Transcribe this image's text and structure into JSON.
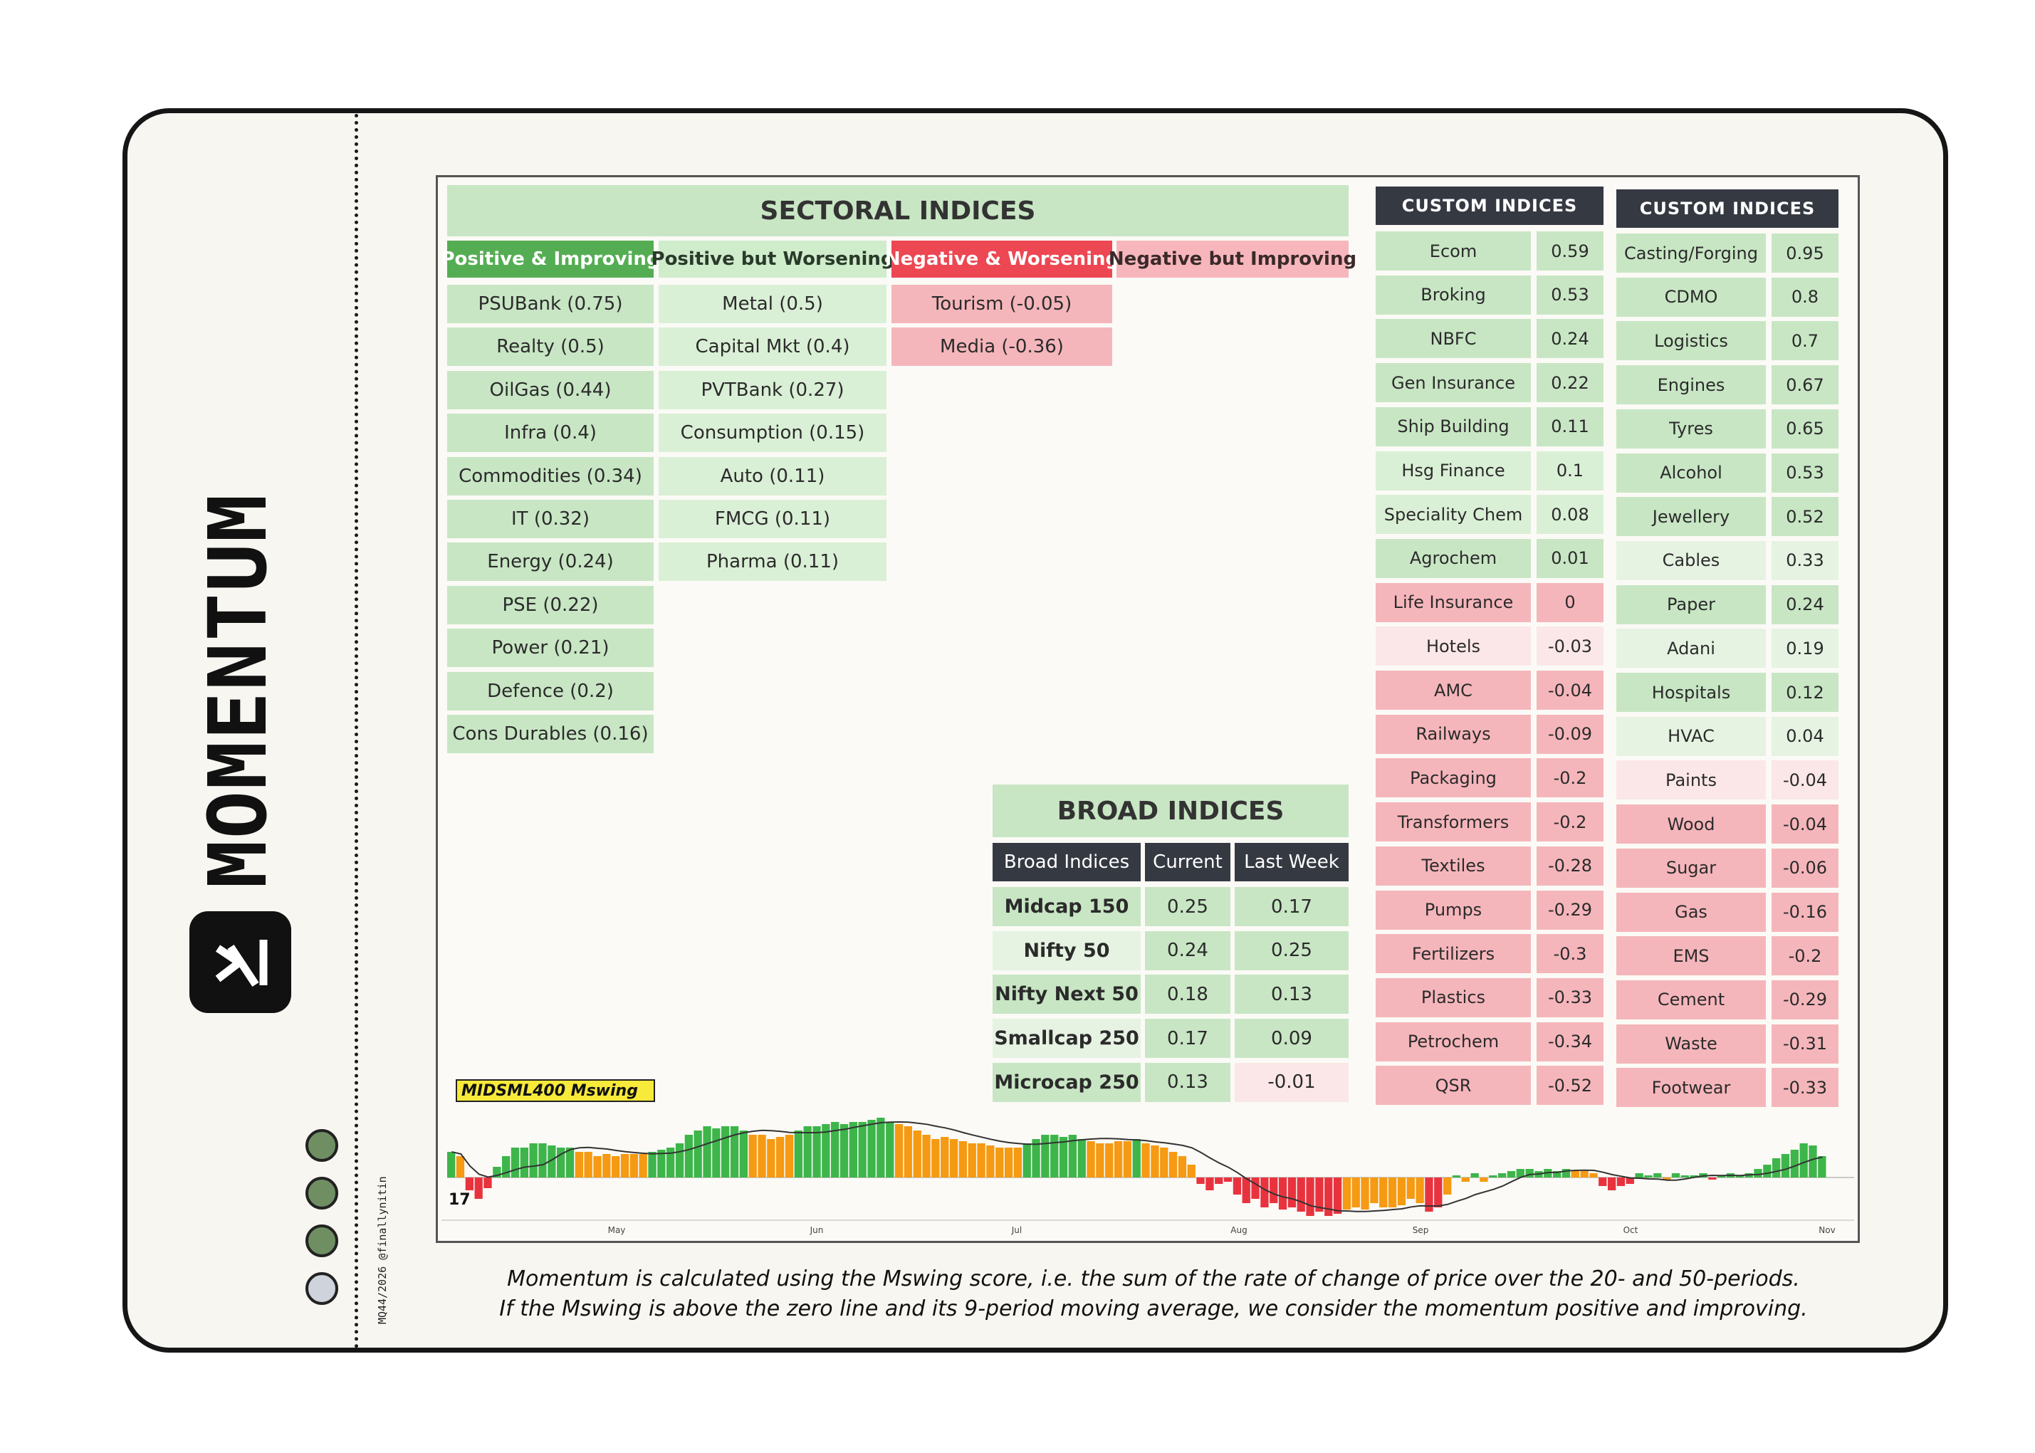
{
  "brand": {
    "name": "MOMENTUM",
    "handle": "MQ44/2026 @finallynitin"
  },
  "sectoral": {
    "title": "SECTORAL INDICES",
    "columns": [
      {
        "label": "Positive & Improving",
        "items": [
          "PSUBank (0.75)",
          "Realty (0.5)",
          "OilGas (0.44)",
          "Infra (0.4)",
          "Commodities (0.34)",
          "IT (0.32)",
          "Energy (0.24)",
          "PSE (0.22)",
          "Power (0.21)",
          "Defence (0.2)",
          "Cons Durables (0.16)"
        ]
      },
      {
        "label": "Positive but Worsening",
        "items": [
          "Metal (0.5)",
          "Capital Mkt (0.4)",
          "PVTBank (0.27)",
          "Consumption (0.15)",
          "Auto (0.11)",
          "FMCG (0.11)",
          "Pharma (0.11)"
        ]
      },
      {
        "label": "Negative & Worsening",
        "items": [
          "Tourism (-0.05)",
          "Media (-0.36)"
        ]
      },
      {
        "label": "Negative but Improving",
        "items": []
      }
    ]
  },
  "custom1": {
    "title": "CUSTOM INDICES",
    "rows": [
      {
        "name": "Ecom",
        "value": "0.59"
      },
      {
        "name": "Broking",
        "value": "0.53"
      },
      {
        "name": "NBFC",
        "value": "0.24"
      },
      {
        "name": "Gen Insurance",
        "value": "0.22"
      },
      {
        "name": "Ship Building",
        "value": "0.11"
      },
      {
        "name": "Hsg Finance",
        "value": "0.1"
      },
      {
        "name": "Speciality Chem",
        "value": "0.08"
      },
      {
        "name": "Agrochem",
        "value": "0.01"
      },
      {
        "name": "Life Insurance",
        "value": "0"
      },
      {
        "name": "Hotels",
        "value": "-0.03"
      },
      {
        "name": "AMC",
        "value": "-0.04"
      },
      {
        "name": "Railways",
        "value": "-0.09"
      },
      {
        "name": "Packaging",
        "value": "-0.2"
      },
      {
        "name": "Transformers",
        "value": "-0.2"
      },
      {
        "name": "Textiles",
        "value": "-0.28"
      },
      {
        "name": "Pumps",
        "value": "-0.29"
      },
      {
        "name": "Fertilizers",
        "value": "-0.3"
      },
      {
        "name": "Plastics",
        "value": "-0.33"
      },
      {
        "name": "Petrochem",
        "value": "-0.34"
      },
      {
        "name": "QSR",
        "value": "-0.52"
      }
    ]
  },
  "custom2": {
    "title": "CUSTOM INDICES",
    "rows": [
      {
        "name": "Casting/Forging",
        "value": "0.95"
      },
      {
        "name": "CDMO",
        "value": "0.8"
      },
      {
        "name": "Logistics",
        "value": "0.7"
      },
      {
        "name": "Engines",
        "value": "0.67"
      },
      {
        "name": "Tyres",
        "value": "0.65"
      },
      {
        "name": "Alcohol",
        "value": "0.53"
      },
      {
        "name": "Jewellery",
        "value": "0.52"
      },
      {
        "name": "Cables",
        "value": "0.33"
      },
      {
        "name": "Paper",
        "value": "0.24"
      },
      {
        "name": "Adani",
        "value": "0.19"
      },
      {
        "name": "Hospitals",
        "value": "0.12"
      },
      {
        "name": "HVAC",
        "value": "0.04"
      },
      {
        "name": "Paints",
        "value": "-0.04"
      },
      {
        "name": "Wood",
        "value": "-0.04"
      },
      {
        "name": "Sugar",
        "value": "-0.06"
      },
      {
        "name": "Gas",
        "value": "-0.16"
      },
      {
        "name": "EMS",
        "value": "-0.2"
      },
      {
        "name": "Cement",
        "value": "-0.29"
      },
      {
        "name": "Waste",
        "value": "-0.31"
      },
      {
        "name": "Footwear",
        "value": "-0.33"
      }
    ]
  },
  "broad": {
    "title": "BROAD INDICES",
    "headers": [
      "Broad Indices",
      "Current",
      "Last Week"
    ],
    "rows": [
      {
        "name": "Midcap 150",
        "current": "0.25",
        "last": "0.17"
      },
      {
        "name": "Nifty 50",
        "current": "0.24",
        "last": "0.25"
      },
      {
        "name": "Nifty Next 50",
        "current": "0.18",
        "last": "0.13"
      },
      {
        "name": "Smallcap 250",
        "current": "0.17",
        "last": "0.09"
      },
      {
        "name": "Microcap 250",
        "current": "0.13",
        "last": "-0.01"
      }
    ]
  },
  "chart_data": {
    "type": "bar",
    "title": "MIDSML400 Mswing",
    "x_ticks": [
      "May",
      "Jun",
      "Jul",
      "Aug",
      "Sep",
      "Oct",
      "Nov"
    ],
    "values": [
      0.12,
      0.1,
      -0.06,
      -0.1,
      -0.05,
      0.05,
      0.1,
      0.14,
      0.14,
      0.16,
      0.16,
      0.15,
      0.14,
      0.14,
      0.12,
      0.12,
      0.1,
      0.11,
      0.1,
      0.11,
      0.11,
      0.11,
      0.12,
      0.13,
      0.14,
      0.16,
      0.2,
      0.22,
      0.24,
      0.23,
      0.24,
      0.24,
      0.22,
      0.2,
      0.2,
      0.18,
      0.19,
      0.2,
      0.22,
      0.24,
      0.24,
      0.25,
      0.26,
      0.25,
      0.26,
      0.26,
      0.27,
      0.28,
      0.26,
      0.25,
      0.24,
      0.22,
      0.2,
      0.18,
      0.19,
      0.18,
      0.17,
      0.16,
      0.16,
      0.15,
      0.14,
      0.14,
      0.14,
      0.16,
      0.18,
      0.2,
      0.2,
      0.19,
      0.2,
      0.18,
      0.17,
      0.16,
      0.16,
      0.17,
      0.17,
      0.18,
      0.16,
      0.15,
      0.14,
      0.12,
      0.1,
      0.06,
      -0.03,
      -0.06,
      -0.03,
      -0.02,
      -0.08,
      -0.12,
      -0.1,
      -0.14,
      -0.12,
      -0.15,
      -0.14,
      -0.16,
      -0.18,
      -0.16,
      -0.18,
      -0.17,
      -0.15,
      -0.14,
      -0.15,
      -0.12,
      -0.14,
      -0.14,
      -0.13,
      -0.1,
      -0.12,
      -0.16,
      -0.14,
      -0.08,
      0.01,
      -0.02,
      0.02,
      -0.02,
      0.01,
      0.02,
      0.03,
      0.04,
      0.04,
      0.03,
      0.04,
      0.03,
      0.04,
      0.03,
      0.03,
      0.02,
      -0.04,
      -0.06,
      -0.04,
      -0.03,
      0.02,
      0.01,
      0.02,
      -0.01,
      0.02,
      0.01,
      0.01,
      0.02,
      -0.01,
      0.01,
      0.02,
      0.01,
      0.02,
      0.04,
      0.06,
      0.09,
      0.11,
      0.13,
      0.16,
      0.15,
      0.1
    ],
    "colors": {
      "positive_improving": "#3db54a",
      "positive_worsening": "#f59a12",
      "negative_worsening": "#e8333f",
      "negative_improving": "#f59a12",
      "ma_line": "#333333"
    }
  },
  "caption": {
    "line1": "Momentum is calculated using the Mswing score, i.e. the sum of the rate of change of price over the 20- and 50-periods.",
    "line2": "If the Mswing is above the zero line and its 9-period moving average, we consider the momentum positive and improving."
  }
}
